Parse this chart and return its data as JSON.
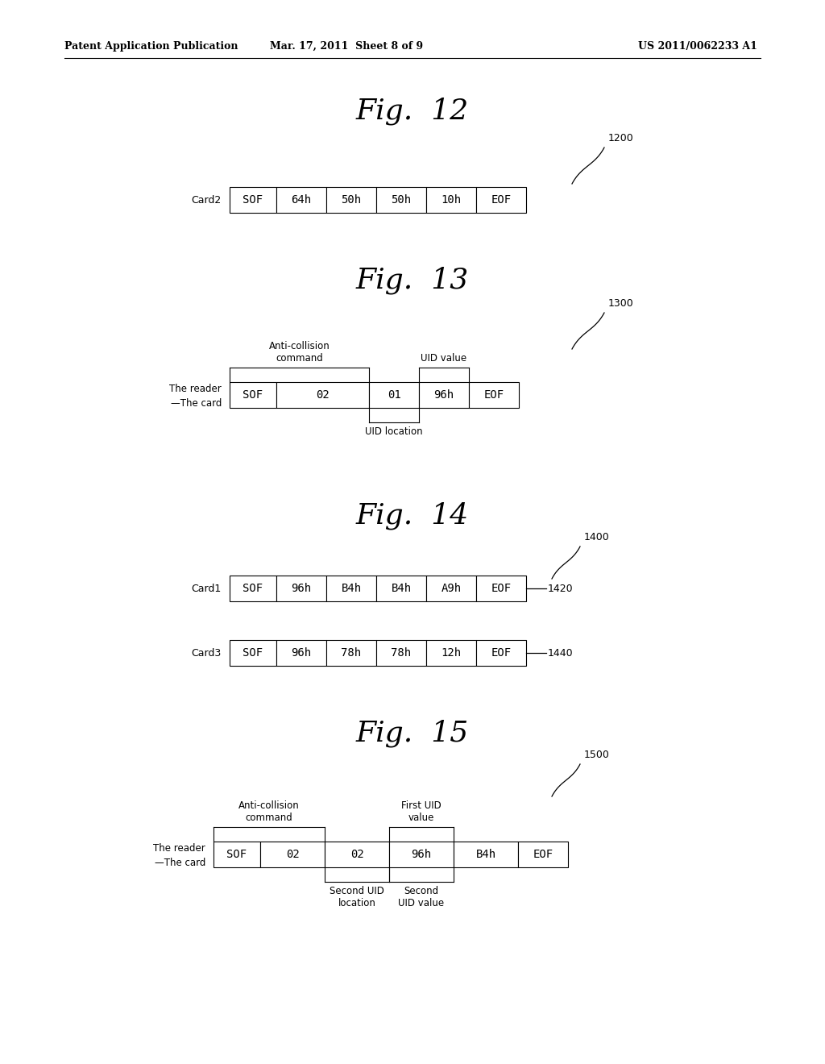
{
  "header_left": "Patent Application Publication",
  "header_mid": "Mar. 17, 2011  Sheet 8 of 9",
  "header_right": "US 2011/0062233 A1",
  "fig12": {
    "title": "Fig.  12",
    "ref": "1200",
    "label": "Card2",
    "cells": [
      "SOF",
      "64h",
      "50h",
      "50h",
      "10h",
      "EOF"
    ]
  },
  "fig13": {
    "title": "Fig.  13",
    "ref": "1300",
    "label_line1": "The reader",
    "label_line2": "—The card",
    "cells": [
      "SOF",
      "02",
      "01",
      "96h",
      "EOF"
    ],
    "ann_top_left": "Anti-collision\ncommand",
    "ann_top_right": "UID value",
    "ann_bottom": "UID location"
  },
  "fig14": {
    "title": "Fig.  14",
    "ref": "1400",
    "row1_label": "Card1",
    "row1_cells": [
      "SOF",
      "96h",
      "B4h",
      "B4h",
      "A9h",
      "EOF"
    ],
    "row1_ref": "— 1420",
    "row2_label": "Card3",
    "row2_cells": [
      "SOF",
      "96h",
      "78h",
      "78h",
      "12h",
      "EOF"
    ],
    "row2_ref": "— 1440"
  },
  "fig15": {
    "title": "Fig.  15",
    "ref": "1500",
    "label_line1": "The reader",
    "label_line2": "—The card",
    "cells": [
      "SOF",
      "02",
      "02",
      "96h",
      "B4h",
      "EOF"
    ],
    "ann_top_left": "Anti-collision\ncommand",
    "ann_top_right": "First UID\nvalue",
    "ann_bottom_left": "Second UID\nlocation",
    "ann_bottom_right": "Second\nUID value"
  },
  "bg_color": "#ffffff",
  "text_color": "#000000",
  "box_edge_color": "#000000",
  "box_face_color": "#ffffff"
}
